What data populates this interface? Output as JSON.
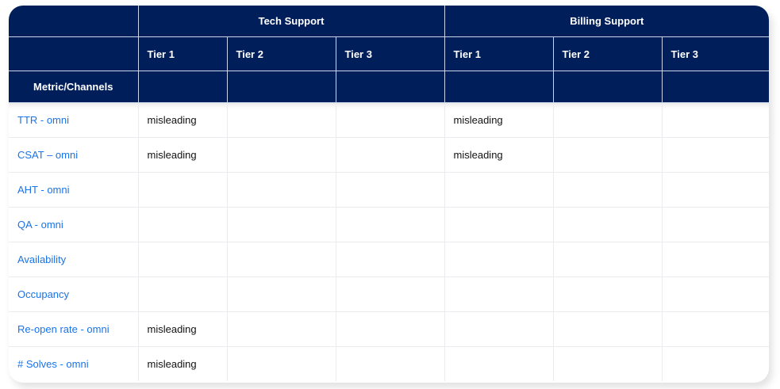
{
  "header": {
    "groups": [
      "Tech Support",
      "Billing Support"
    ],
    "tiers": [
      "Tier 1",
      "Tier 2",
      "Tier 3",
      "Tier 1",
      "Tier 2",
      "Tier 3"
    ],
    "metric_label": "Metric/Channels"
  },
  "rows": [
    {
      "metric": "TTR - omni",
      "cells": [
        "misleading",
        "",
        "",
        "misleading",
        "",
        ""
      ]
    },
    {
      "metric": "CSAT – omni",
      "cells": [
        "misleading",
        "",
        "",
        "misleading",
        "",
        ""
      ]
    },
    {
      "metric": "AHT - omni",
      "cells": [
        "",
        "",
        "",
        "",
        "",
        ""
      ]
    },
    {
      "metric": "QA - omni",
      "cells": [
        "",
        "",
        "",
        "",
        "",
        ""
      ]
    },
    {
      "metric": "Availability",
      "cells": [
        "",
        "",
        "",
        "",
        "",
        ""
      ]
    },
    {
      "metric": "Occupancy",
      "cells": [
        "",
        "",
        "",
        "",
        "",
        ""
      ]
    },
    {
      "metric": "Re-open rate - omni",
      "cells": [
        "misleading",
        "",
        "",
        "",
        "",
        ""
      ]
    },
    {
      "metric": "# Solves - omni",
      "cells": [
        "misleading",
        "",
        "",
        "",
        "",
        ""
      ]
    }
  ],
  "colors": {
    "header_bg": "#001e5a",
    "metric_text": "#1a73e8"
  }
}
